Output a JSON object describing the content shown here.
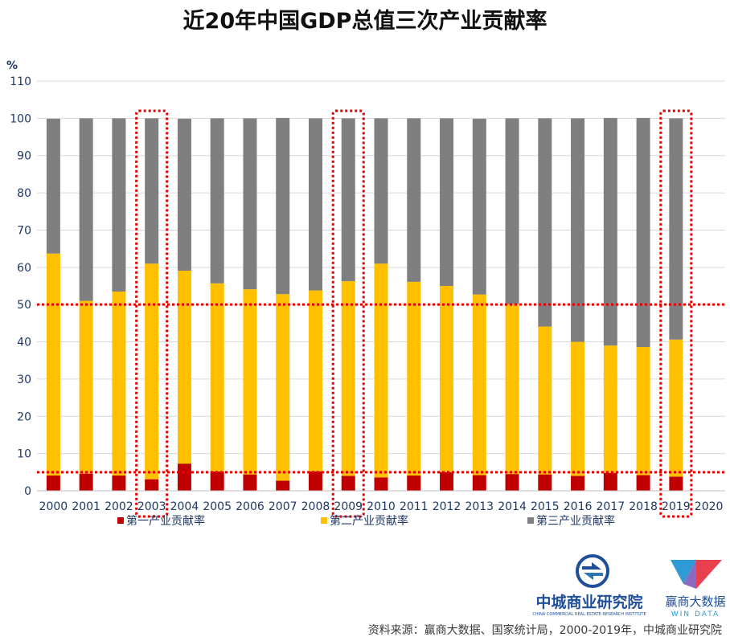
{
  "chart_data": {
    "type": "bar",
    "stacked": true,
    "title": "近20年中国GDP总值三次产业贡献率",
    "ylabel": "%",
    "ylim": [
      0,
      110
    ],
    "yticks": [
      0,
      10,
      20,
      30,
      40,
      50,
      60,
      70,
      80,
      90,
      100,
      110
    ],
    "categories": [
      "2000",
      "2001",
      "2002",
      "2003",
      "2004",
      "2005",
      "2006",
      "2007",
      "2008",
      "2009",
      "2010",
      "2011",
      "2012",
      "2013",
      "2014",
      "2015",
      "2016",
      "2017",
      "2018",
      "2019",
      "2020"
    ],
    "series": [
      {
        "name": "第一产业贡献率",
        "color": "#c00000",
        "values": [
          4.1,
          4.6,
          4.1,
          3.1,
          7.3,
          5.2,
          4.4,
          2.7,
          5.2,
          4.0,
          3.6,
          4.1,
          5.0,
          4.2,
          4.5,
          4.4,
          4.0,
          4.8,
          4.2,
          3.8,
          null
        ]
      },
      {
        "name": "第二产业贡献率",
        "color": "#ffc000",
        "values": [
          59.6,
          46.4,
          49.4,
          57.9,
          51.8,
          50.5,
          49.7,
          50.1,
          48.6,
          52.3,
          57.4,
          52.0,
          50.0,
          48.5,
          45.6,
          39.7,
          36.0,
          34.2,
          34.4,
          36.8,
          null
        ]
      },
      {
        "name": "第三产业贡献率",
        "color": "#7f7f7f",
        "values": [
          36.2,
          49.0,
          46.5,
          39.0,
          40.8,
          44.3,
          45.9,
          47.3,
          46.2,
          43.7,
          39.0,
          43.9,
          45.0,
          47.2,
          49.9,
          55.9,
          60.0,
          61.1,
          61.5,
          59.4,
          null
        ]
      }
    ],
    "reference_lines": [
      50,
      5
    ],
    "highlighted_categories": [
      "2003",
      "2009",
      "2019"
    ],
    "grid": true,
    "legend_position": "bottom"
  },
  "logos": {
    "zhongcheng_name": "中城商业研究院",
    "zhongcheng_sub": "CHINA COMMERCIAL REAL ESTATE RESEARCH INSTITUTE",
    "windata_name": "赢商大数据",
    "windata_sub": "WIN DATA"
  },
  "source": "资料来源：赢商大数据、国家统计局，2000-2019年，中城商业研究院"
}
